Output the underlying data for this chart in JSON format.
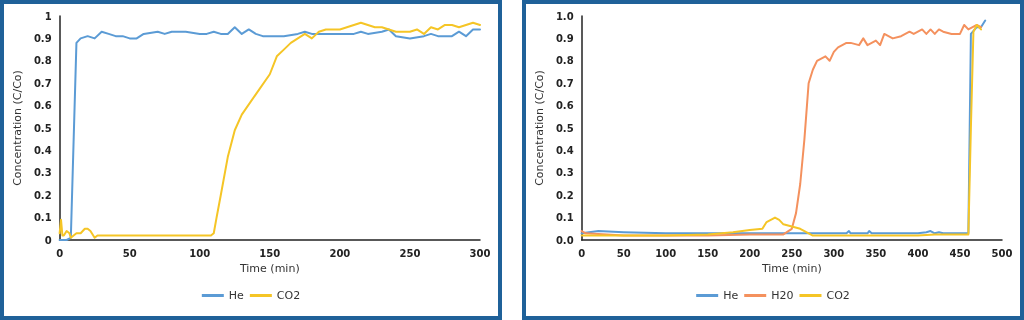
{
  "chart_data": [
    {
      "type": "line",
      "xlabel": "Time (min)",
      "ylabel": "Concentration (C/Co)",
      "xlim": [
        0,
        300
      ],
      "xticks": [
        0,
        50,
        100,
        150,
        200,
        250,
        300
      ],
      "ylim": [
        0,
        1
      ],
      "yticks": [
        0,
        0.1,
        0.2,
        0.3,
        0.4,
        0.5,
        0.6,
        0.7,
        0.8,
        0.9,
        1
      ],
      "grid": false,
      "legend": "bottom",
      "marker": "none",
      "line_style": "solid",
      "series": [
        {
          "name": "He",
          "color": "#5b9bd5",
          "x": [
            0,
            5,
            8,
            12,
            15,
            20,
            25,
            30,
            35,
            40,
            45,
            50,
            55,
            60,
            70,
            75,
            80,
            90,
            100,
            105,
            110,
            115,
            120,
            125,
            130,
            135,
            140,
            145,
            150,
            160,
            170,
            175,
            180,
            190,
            200,
            210,
            215,
            220,
            230,
            235,
            240,
            250,
            260,
            265,
            270,
            280,
            285,
            290,
            295,
            300
          ],
          "values": [
            0,
            0,
            0.01,
            0.88,
            0.9,
            0.91,
            0.9,
            0.93,
            0.92,
            0.91,
            0.91,
            0.9,
            0.9,
            0.92,
            0.93,
            0.92,
            0.93,
            0.93,
            0.92,
            0.92,
            0.93,
            0.92,
            0.92,
            0.95,
            0.92,
            0.94,
            0.92,
            0.91,
            0.91,
            0.91,
            0.92,
            0.93,
            0.92,
            0.92,
            0.92,
            0.92,
            0.93,
            0.92,
            0.93,
            0.94,
            0.91,
            0.9,
            0.91,
            0.92,
            0.91,
            0.91,
            0.93,
            0.91,
            0.94,
            0.94
          ]
        },
        {
          "name": "CO2",
          "color": "#f5c526",
          "x": [
            0,
            1,
            2,
            3,
            5,
            7,
            8,
            10,
            12,
            15,
            18,
            20,
            22,
            25,
            27,
            30,
            50,
            100,
            108,
            110,
            112,
            115,
            120,
            125,
            130,
            140,
            150,
            155,
            160,
            165,
            170,
            175,
            180,
            185,
            190,
            200,
            205,
            210,
            215,
            220,
            225,
            230,
            240,
            250,
            255,
            260,
            265,
            270,
            275,
            280,
            285,
            290,
            295,
            300
          ],
          "values": [
            0.03,
            0.09,
            0.02,
            0.02,
            0.04,
            0.03,
            0.01,
            0.02,
            0.03,
            0.03,
            0.05,
            0.05,
            0.04,
            0.01,
            0.02,
            0.02,
            0.02,
            0.02,
            0.02,
            0.03,
            0.1,
            0.2,
            0.37,
            0.49,
            0.56,
            0.65,
            0.74,
            0.82,
            0.85,
            0.88,
            0.9,
            0.92,
            0.9,
            0.93,
            0.94,
            0.94,
            0.95,
            0.96,
            0.97,
            0.96,
            0.95,
            0.95,
            0.93,
            0.93,
            0.94,
            0.92,
            0.95,
            0.94,
            0.96,
            0.96,
            0.95,
            0.96,
            0.97,
            0.96
          ]
        }
      ]
    },
    {
      "type": "line",
      "xlabel": "Time (min)",
      "ylabel": "Concentration (C/Co)",
      "xlim": [
        0,
        500
      ],
      "xticks": [
        0,
        50,
        100,
        150,
        200,
        250,
        300,
        350,
        400,
        450,
        500
      ],
      "ylim": [
        0,
        1
      ],
      "yticks": [
        {
          "value": 0,
          "label": "0.0"
        },
        0.1,
        0.2,
        0.3,
        0.4,
        0.5,
        0.6,
        0.7,
        0.8,
        0.9,
        {
          "value": 1,
          "label": "1.0"
        }
      ],
      "grid": false,
      "legend": "bottom",
      "marker": "none",
      "line_style": "solid",
      "series": [
        {
          "name": "He",
          "color": "#5b9bd5",
          "x": [
            0,
            20,
            50,
            100,
            150,
            200,
            250,
            270,
            300,
            315,
            318,
            320,
            340,
            342,
            345,
            360,
            400,
            410,
            415,
            420,
            425,
            430,
            460,
            463,
            470,
            475,
            480
          ],
          "values": [
            0.03,
            0.04,
            0.035,
            0.03,
            0.03,
            0.03,
            0.03,
            0.03,
            0.03,
            0.03,
            0.04,
            0.03,
            0.03,
            0.04,
            0.03,
            0.03,
            0.03,
            0.035,
            0.04,
            0.03,
            0.035,
            0.03,
            0.03,
            0.92,
            0.95,
            0.95,
            0.98
          ]
        },
        {
          "name": "H20",
          "color": "#f4915e",
          "x": [
            0,
            5,
            50,
            100,
            150,
            200,
            240,
            250,
            255,
            260,
            265,
            268,
            270,
            275,
            280,
            290,
            295,
            300,
            305,
            310,
            315,
            320,
            330,
            335,
            340,
            345,
            350,
            355,
            360,
            370,
            380,
            385,
            390,
            395,
            400,
            405,
            410,
            415,
            420,
            425,
            430,
            440,
            450,
            455,
            460,
            465,
            470,
            475
          ],
          "values": [
            0.04,
            0.03,
            0.02,
            0.02,
            0.02,
            0.025,
            0.025,
            0.05,
            0.12,
            0.25,
            0.45,
            0.6,
            0.7,
            0.76,
            0.8,
            0.82,
            0.8,
            0.84,
            0.86,
            0.87,
            0.88,
            0.88,
            0.87,
            0.9,
            0.87,
            0.88,
            0.89,
            0.87,
            0.92,
            0.9,
            0.91,
            0.92,
            0.93,
            0.92,
            0.93,
            0.94,
            0.92,
            0.94,
            0.92,
            0.94,
            0.93,
            0.92,
            0.92,
            0.96,
            0.94,
            0.95,
            0.96,
            0.95
          ]
        },
        {
          "name": "CO2",
          "color": "#f5c526",
          "x": [
            0,
            50,
            100,
            150,
            180,
            200,
            215,
            220,
            225,
            230,
            235,
            240,
            250,
            260,
            265,
            270,
            275,
            300,
            350,
            400,
            420,
            460,
            463,
            466,
            470,
            475
          ],
          "values": [
            0.02,
            0.02,
            0.02,
            0.025,
            0.035,
            0.045,
            0.05,
            0.08,
            0.09,
            0.1,
            0.09,
            0.07,
            0.06,
            0.05,
            0.04,
            0.03,
            0.02,
            0.02,
            0.02,
            0.02,
            0.025,
            0.025,
            0.5,
            0.93,
            0.96,
            0.94
          ]
        }
      ]
    }
  ]
}
